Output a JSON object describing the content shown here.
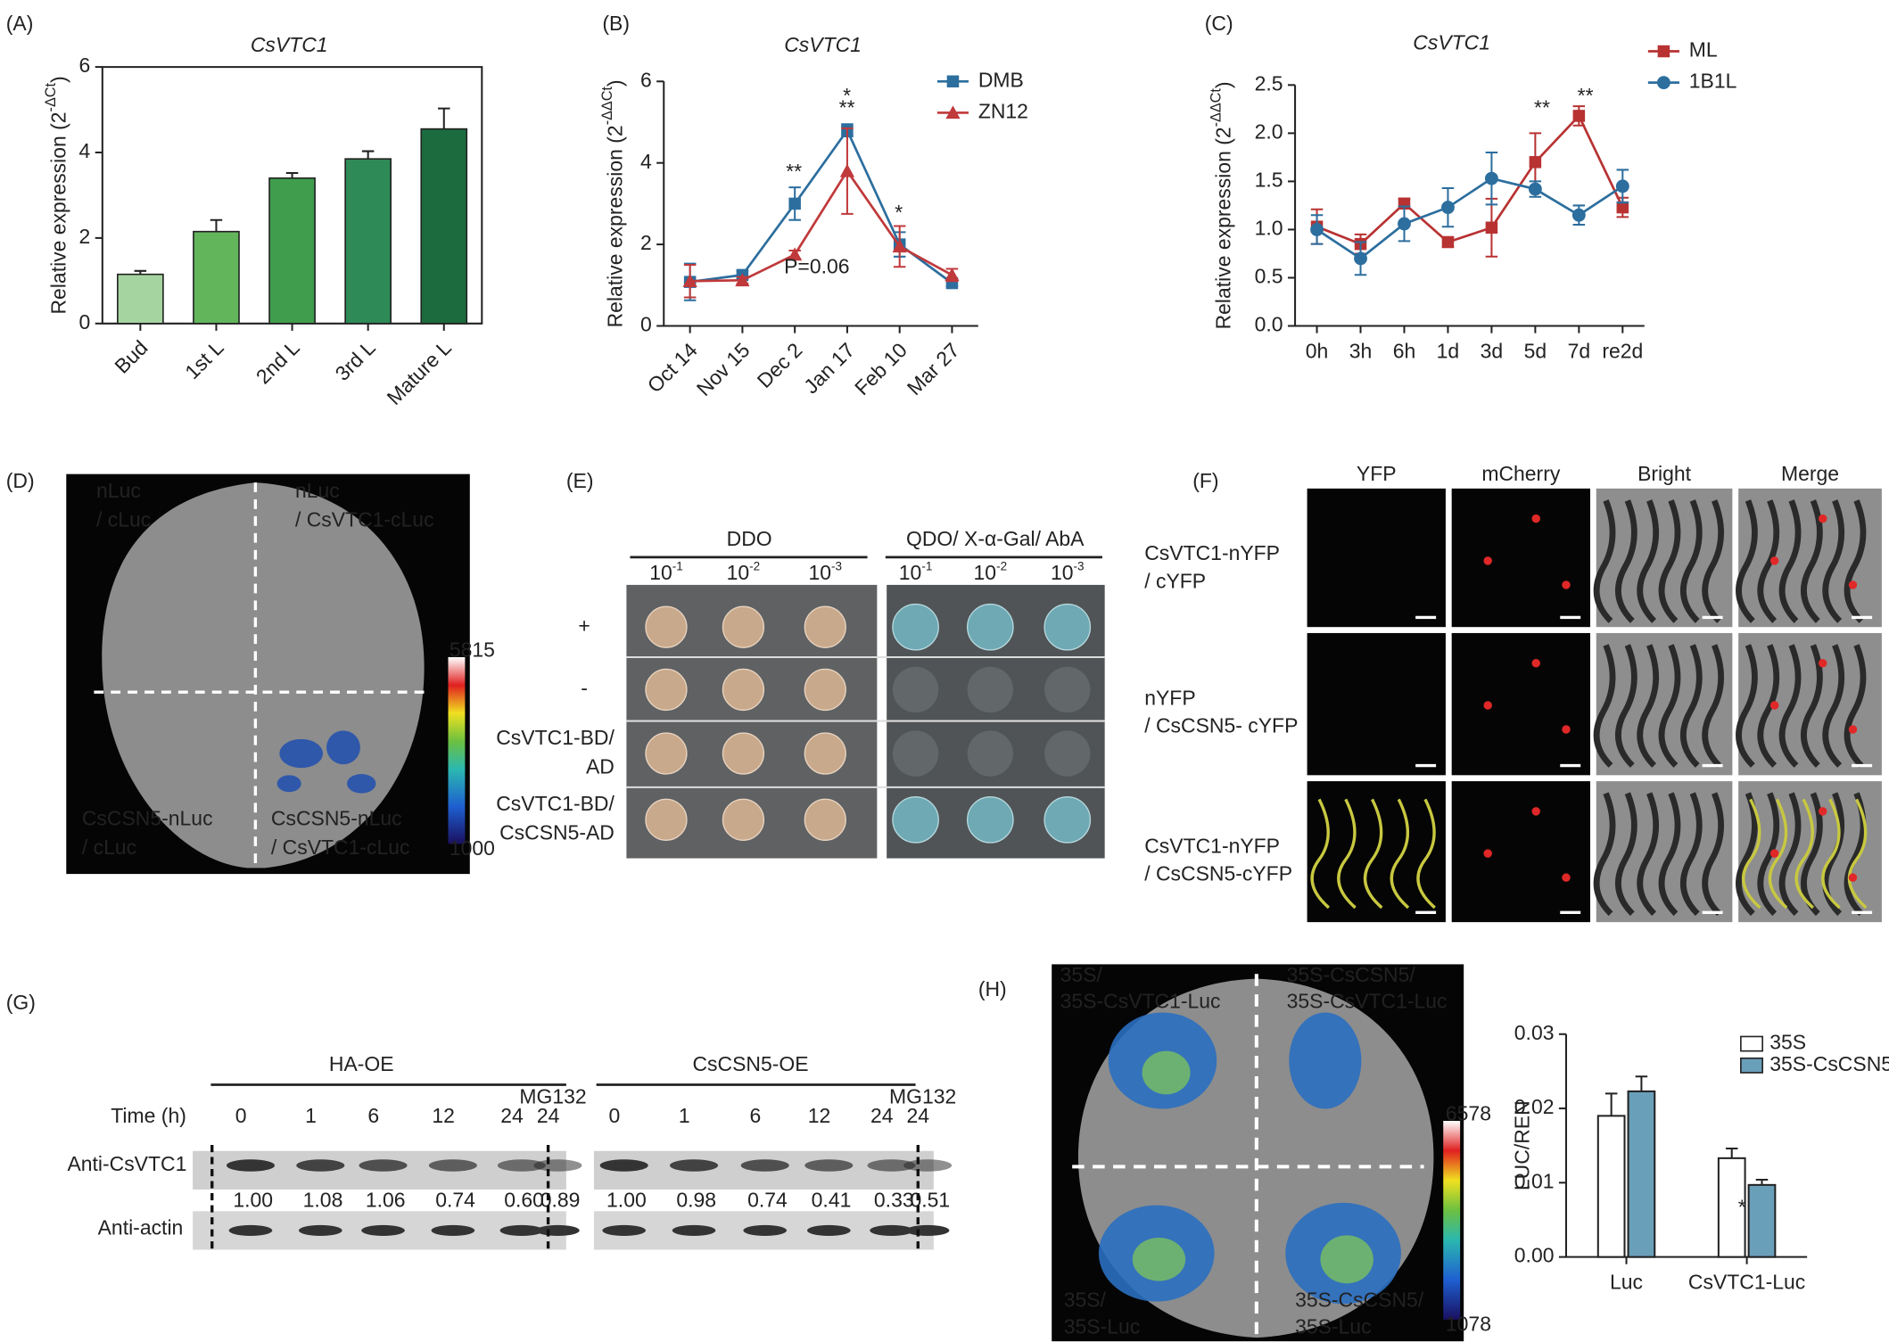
{
  "chart_data": [
    {
      "type": "bar",
      "label": "(A)",
      "title": "CsVTC1",
      "ylabel": [
        "Relative expression (2",
        "-ΔCt",
        ")"
      ],
      "categories": [
        "Bud",
        "1st L",
        "2nd L",
        "3rd L",
        "Mature L"
      ],
      "values": [
        1.15,
        2.15,
        3.4,
        3.85,
        4.55
      ],
      "errors": [
        0.08,
        0.27,
        0.12,
        0.18,
        0.48
      ],
      "colors": [
        "#a5d4a0",
        "#63b55c",
        "#3f9d4d",
        "#2e8a56",
        "#1c6b3f"
      ],
      "ylim": [
        0,
        6
      ],
      "yticks": [
        0,
        2,
        4,
        6
      ]
    },
    {
      "type": "line",
      "label": "(B)",
      "title": "CsVTC1",
      "ylabel": [
        "Relative expression (2",
        "-ΔΔCt",
        ")"
      ],
      "categories": [
        "Oct 14",
        "Nov 15",
        "Dec 2",
        "Jan 17",
        "Feb 10",
        "Mar 27"
      ],
      "series": [
        {
          "name": "DMB",
          "color": "#2c6e9e",
          "marker": "square",
          "values": [
            1.08,
            1.25,
            3.0,
            4.8,
            2.0,
            1.05
          ],
          "errors": [
            0.45,
            0.1,
            0.4,
            0.15,
            0.3,
            0.08
          ]
        },
        {
          "name": "ZN12",
          "color": "#c0393b",
          "marker": "triangle",
          "values": [
            1.1,
            1.12,
            1.75,
            3.8,
            1.95,
            1.25
          ],
          "errors": [
            0.4,
            0.08,
            0.1,
            1.05,
            0.5,
            0.15
          ]
        }
      ],
      "annotations": [
        {
          "text": "**",
          "color": "#2c6e9e"
        },
        {
          "text": "**",
          "color": "#2c6e9e"
        },
        {
          "text": "*",
          "color": "#c0393b"
        },
        {
          "text": "*",
          "color": "#2c6e9e"
        },
        {
          "text": "P=0.06",
          "color": "#c0393b"
        }
      ],
      "ylim": [
        0,
        6
      ],
      "yticks": [
        0,
        2,
        4,
        6
      ]
    },
    {
      "type": "line",
      "label": "(C)",
      "title": "CsVTC1",
      "ylabel": [
        "Relative expression (2",
        "-ΔΔCt",
        ")"
      ],
      "categories": [
        "0h",
        "3h",
        "6h",
        "1d",
        "3d",
        "5d",
        "7d",
        "re2d"
      ],
      "series": [
        {
          "name": "ML",
          "color": "#b83232",
          "marker": "square",
          "values": [
            1.03,
            0.85,
            1.27,
            0.87,
            1.02,
            1.7,
            2.18,
            1.23
          ],
          "errors": [
            0.18,
            0.1,
            0.05,
            0.05,
            0.3,
            0.3,
            0.1,
            0.1
          ]
        },
        {
          "name": "1B1L",
          "color": "#2c6e9e",
          "marker": "circle",
          "values": [
            1.0,
            0.7,
            1.06,
            1.23,
            1.53,
            1.42,
            1.15,
            1.45
          ],
          "errors": [
            0.15,
            0.17,
            0.18,
            0.2,
            0.27,
            0.08,
            0.1,
            0.17
          ]
        }
      ],
      "annotations": [
        {
          "text": "**",
          "color": "#2c6e9e"
        },
        {
          "text": "**",
          "color": "#b83232"
        }
      ],
      "ylim": [
        0,
        2.5
      ],
      "yticks": [
        {
          "value": 0,
          "label": "0.0"
        },
        0.5,
        {
          "value": 1,
          "label": "1.0"
        },
        1.5,
        {
          "value": 2,
          "label": "2.0"
        },
        2.5
      ]
    },
    {
      "type": "bar",
      "label": "(H)",
      "ylabel": [
        "LUC/REN"
      ],
      "categories": [
        "Luc",
        "CsVTC1-Luc"
      ],
      "series": [
        {
          "name": "35S",
          "color": "#ffffff",
          "values": [
            0.019,
            0.0133
          ],
          "errors": [
            0.003,
            0.0013
          ]
        },
        {
          "name": "35S-CsCSN5",
          "color": "#6a9fba",
          "values": [
            0.0223,
            0.0097
          ],
          "errors": [
            0.002,
            0.0007
          ]
        }
      ],
      "annotations": [
        {
          "text": "*",
          "color": "#222222"
        }
      ],
      "ylim": [
        0,
        0.03
      ],
      "yticks": [
        {
          "value": 0,
          "label": "0.00"
        },
        0.01,
        0.02,
        0.03
      ]
    }
  ],
  "figure": {
    "D": {
      "label": "(D)",
      "texts": [
        "nLuc",
        "/ cLuc",
        "nLuc",
        "/ CsVTC1-cLuc",
        "CsCSN5-nLuc",
        "/ cLuc",
        "CsCSN5-nLuc",
        "/ CsVTC1-cLuc"
      ],
      "scale": [
        "5815",
        "1000"
      ]
    },
    "E": {
      "label": "(E)",
      "groups": [
        "DDO",
        "QDO/ X-α-Gal/ AbA"
      ],
      "dilutions": [
        [
          "10",
          "-1"
        ],
        [
          "10",
          "-2"
        ],
        [
          "10",
          "-3"
        ]
      ],
      "rows": [
        [
          "+"
        ],
        [
          "-"
        ],
        [
          "CsVTC1-BD/",
          "AD"
        ],
        [
          "CsVTC1-BD/",
          "CsCSN5-AD"
        ]
      ]
    },
    "F": {
      "label": "(F)",
      "columns": [
        "YFP",
        "mCherry",
        "Bright",
        "Merge"
      ],
      "rows": [
        [
          "CsVTC1-nYFP",
          "/ cYFP"
        ],
        [
          "nYFP",
          "/ CsCSN5- cYFP"
        ],
        [
          "CsVTC1-nYFP",
          "/ CsCSN5-cYFP"
        ]
      ]
    },
    "G": {
      "label": "(G)",
      "groups": [
        "HA-OE",
        "CsCSN5-OE"
      ],
      "time_label": "Time (h)",
      "times": [
        "0",
        "1",
        "6",
        "12",
        "24",
        "24"
      ],
      "treatment": "MG132",
      "rows": [
        "Anti-CsVTC1",
        "Anti-actin"
      ],
      "quantities": [
        [
          "1.00",
          "1.08",
          "1.06",
          "0.74",
          "0.60",
          "0.89"
        ],
        [
          "1.00",
          "0.98",
          "0.74",
          "0.41",
          "0.33",
          "0.51"
        ]
      ]
    },
    "H": {
      "texts": [
        "35S/",
        "35S-CsVTC1-Luc",
        "35S-CsCSN5/",
        "35S-CsVTC1-Luc",
        "35S/",
        "35S-Luc",
        "35S-CsCSN5/",
        "35S-Luc"
      ],
      "scale": [
        "6578",
        "1078"
      ]
    }
  }
}
